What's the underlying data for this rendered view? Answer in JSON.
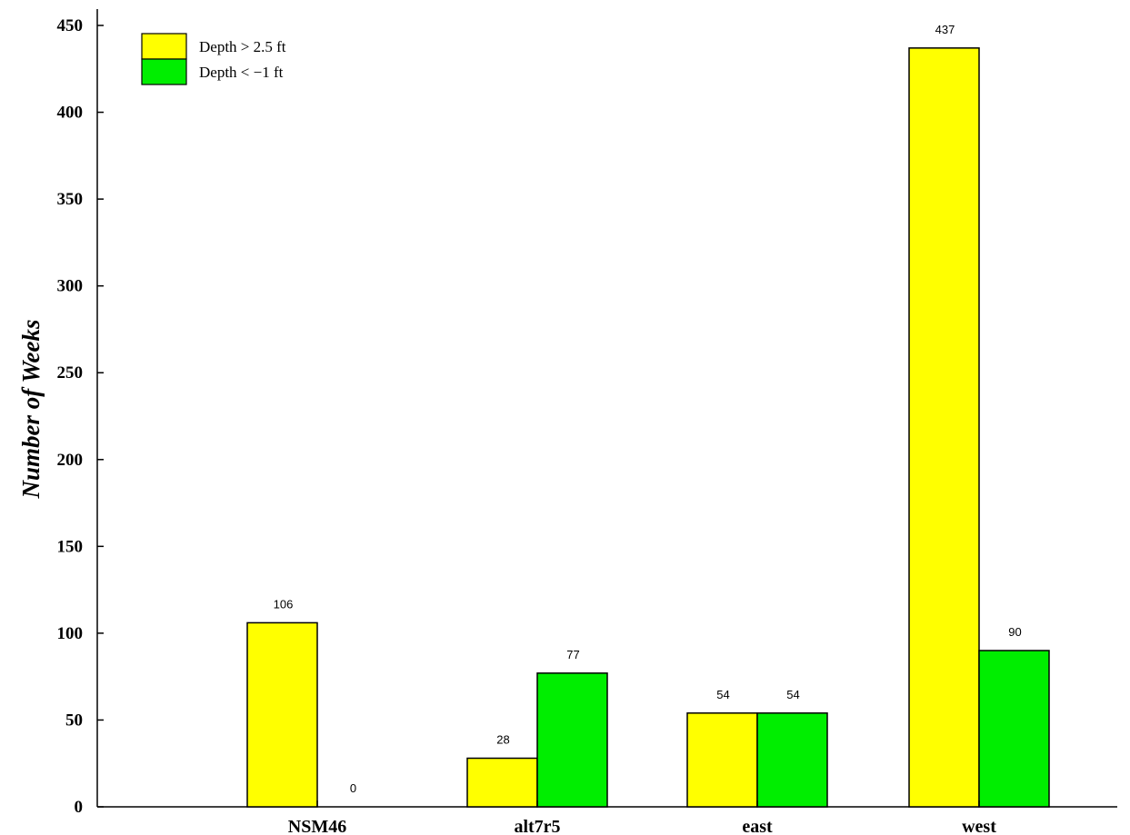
{
  "chart_data": {
    "type": "bar",
    "categories": [
      "NSM46",
      "alt7r5",
      "east",
      "west"
    ],
    "series": [
      {
        "name": "Depth > 2.5 ft",
        "values": [
          106,
          28,
          54,
          437
        ],
        "color": "#ffff00"
      },
      {
        "name": "Depth < −1 ft",
        "values": [
          0,
          77,
          54,
          90
        ],
        "color": "#00ee00"
      }
    ],
    "ylabel": "Number of Weeks",
    "xlabel": "",
    "ylim": [
      0,
      450
    ],
    "yticks": [
      0,
      50,
      100,
      150,
      200,
      250,
      300,
      350,
      400,
      450
    ],
    "grid": false,
    "legend_position": "top-left"
  }
}
